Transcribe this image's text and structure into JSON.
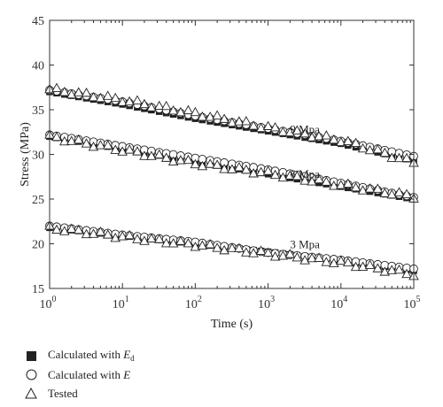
{
  "chart_data": {
    "type": "scatter",
    "xlabel": "Time (s)",
    "ylabel": "Stress (MPa)",
    "xscale": "log",
    "xlim": [
      1,
      100000
    ],
    "ylim": [
      15,
      45
    ],
    "yticks": [
      15,
      20,
      25,
      30,
      35,
      40,
      45
    ],
    "xticks": [
      {
        "base": "10",
        "exp": "0"
      },
      {
        "base": "10",
        "exp": "1"
      },
      {
        "base": "10",
        "exp": "2"
      },
      {
        "base": "10",
        "exp": "3"
      },
      {
        "base": "10",
        "exp": "4"
      },
      {
        "base": "10",
        "exp": "5"
      }
    ],
    "legend_position": "bottom-left",
    "groups": [
      {
        "label": "9 Mpa",
        "series": [
          {
            "marker": "filled-square",
            "x": [
              1,
              10,
              100,
              1000,
              10000,
              100000
            ],
            "y": [
              37.0,
              35.6,
              34.0,
              32.6,
              31.2,
              29.3
            ]
          },
          {
            "marker": "open-circle",
            "x": [
              1,
              10,
              100,
              1000,
              10000,
              100000
            ],
            "y": [
              37.2,
              35.9,
              34.3,
              32.9,
              31.5,
              29.8
            ]
          },
          {
            "marker": "open-triangle",
            "x": [
              1,
              10,
              100,
              1000,
              10000,
              100000
            ],
            "y": [
              37.3,
              36.1,
              34.6,
              33.0,
              31.6,
              29.1
            ]
          }
        ]
      },
      {
        "label": "6 Mpa",
        "series": [
          {
            "marker": "filled-square",
            "x": [
              1,
              10,
              100,
              1000,
              10000,
              100000
            ],
            "y": [
              32.0,
              30.6,
              29.2,
              27.8,
              26.4,
              25.0
            ]
          },
          {
            "marker": "open-circle",
            "x": [
              1,
              10,
              100,
              1000,
              10000,
              100000
            ],
            "y": [
              32.2,
              30.9,
              29.6,
              28.3,
              26.8,
              25.2
            ]
          },
          {
            "marker": "open-triangle",
            "x": [
              1,
              10,
              100,
              1000,
              10000,
              100000
            ],
            "y": [
              32.0,
              30.5,
              29.0,
              27.9,
              26.6,
              25.3
            ]
          }
        ]
      },
      {
        "label": "3 Mpa",
        "series": [
          {
            "marker": "filled-square",
            "x": [
              1,
              10,
              100,
              1000,
              10000,
              100000
            ],
            "y": [
              21.8,
              20.9,
              20.0,
              19.1,
              18.1,
              17.0
            ]
          },
          {
            "marker": "open-circle",
            "x": [
              1,
              10,
              100,
              1000,
              10000,
              100000
            ],
            "y": [
              22.0,
              21.0,
              20.2,
              19.0,
              18.2,
              17.2
            ]
          },
          {
            "marker": "open-triangle",
            "x": [
              1,
              10,
              100,
              1000,
              10000,
              100000
            ],
            "y": [
              21.8,
              20.8,
              19.9,
              18.9,
              17.9,
              16.6
            ]
          }
        ]
      }
    ]
  },
  "legend": [
    {
      "marker": "filled-square",
      "text": "Calculated with ",
      "var": "E",
      "sub": "d"
    },
    {
      "marker": "open-circle",
      "text": "Calculated with ",
      "var": "E",
      "sub": ""
    },
    {
      "marker": "open-triangle",
      "text": "Tested",
      "var": "",
      "sub": ""
    }
  ]
}
